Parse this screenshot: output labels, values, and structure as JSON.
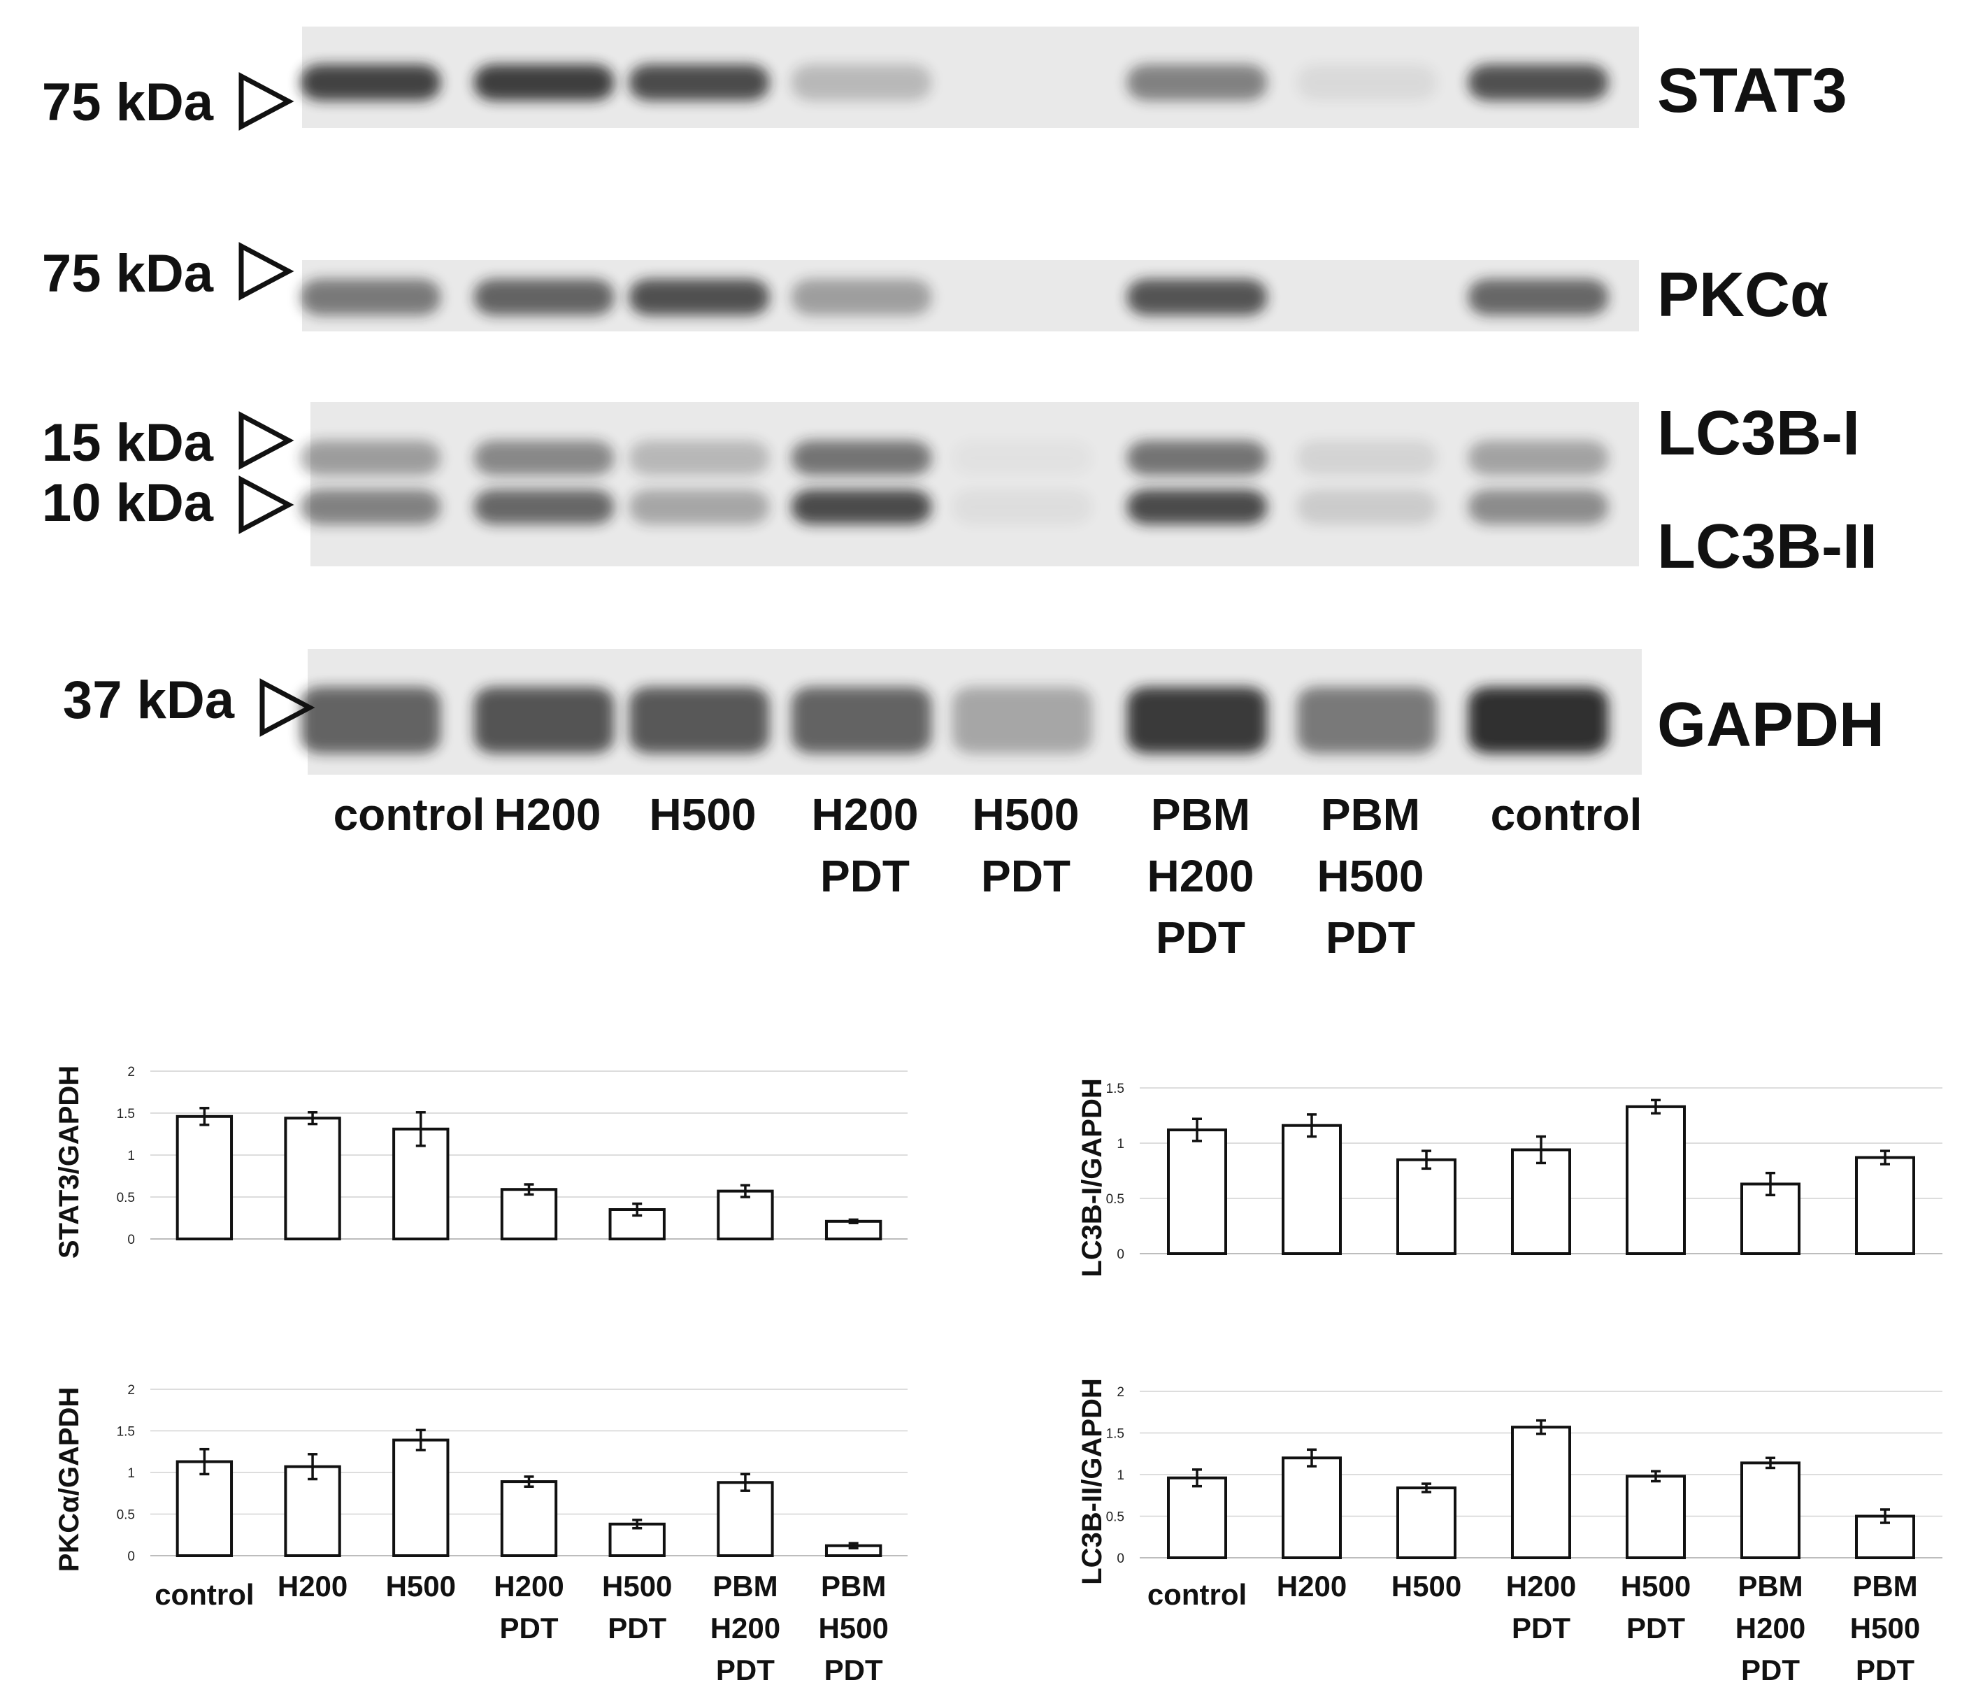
{
  "colors": {
    "band": "#1e1e1e",
    "membrane": "#e9e9e9",
    "bar_fill": "#ffffff",
    "bar_stroke": "#111111",
    "grid": "#d2d2d2"
  },
  "blot": {
    "lanes": [
      "control",
      "H200",
      "H500",
      "H200\nPDT",
      "H500\nPDT",
      "PBM\nH200\nPDT",
      "PBM\nH500\nPDT",
      "control"
    ],
    "panels": [
      {
        "markers": [
          "75 kDa"
        ],
        "proteins": [
          "STAT3"
        ],
        "band_intensity": [
          0.9,
          0.92,
          0.85,
          0.25,
          0.0,
          0.55,
          0.08,
          0.82
        ]
      },
      {
        "markers": [
          "75 kDa"
        ],
        "proteins": [
          "PKCα"
        ],
        "band_intensity": [
          0.6,
          0.72,
          0.82,
          0.4,
          0.0,
          0.8,
          0.0,
          0.7
        ]
      },
      {
        "markers": [
          "15 kDa",
          "10 kDa"
        ],
        "proteins": [
          "LC3B-I",
          "LC3B-II"
        ],
        "band_intensity": [
          0.55,
          0.7,
          0.35,
          0.85,
          0.05,
          0.85,
          0.15,
          0.5
        ]
      },
      {
        "markers": [
          "37 kDa"
        ],
        "proteins": [
          "GAPDH"
        ],
        "band_intensity": [
          0.72,
          0.8,
          0.78,
          0.72,
          0.35,
          0.95,
          0.6,
          1.0
        ]
      }
    ]
  },
  "chart_data": [
    {
      "type": "bar",
      "ylabel": "STAT3/GAPDH",
      "categories": [
        "control",
        "H200",
        "H500",
        "H200\nPDT",
        "H500\nPDT",
        "PBM\nH200\nPDT",
        "PBM\nH500\nPDT"
      ],
      "values": [
        1.46,
        1.44,
        1.31,
        0.59,
        0.35,
        0.57,
        0.21
      ],
      "errors": [
        0.1,
        0.07,
        0.2,
        0.06,
        0.07,
        0.07,
        0.02
      ],
      "yticks": [
        "0",
        "0.5",
        "1",
        "1.5",
        "2"
      ],
      "ylim": [
        0,
        2
      ],
      "grid": true
    },
    {
      "type": "bar",
      "ylabel": "PKCα/GAPDH",
      "categories": [
        "control",
        "H200",
        "H500",
        "H200\nPDT",
        "H500\nPDT",
        "PBM\nH200\nPDT",
        "PBM\nH500\nPDT"
      ],
      "values": [
        1.13,
        1.07,
        1.39,
        0.89,
        0.38,
        0.88,
        0.12
      ],
      "errors": [
        0.15,
        0.15,
        0.12,
        0.06,
        0.05,
        0.1,
        0.03
      ],
      "yticks": [
        "0",
        "0.5",
        "1",
        "1.5",
        "2"
      ],
      "ylim": [
        0,
        2
      ],
      "grid": true
    },
    {
      "type": "bar",
      "ylabel": "LC3B-I/GAPDH",
      "categories": [
        "control",
        "H200",
        "H500",
        "H200\nPDT",
        "H500\nPDT",
        "PBM\nH200\nPDT",
        "PBM\nH500\nPDT"
      ],
      "values": [
        1.12,
        1.16,
        0.85,
        0.94,
        1.33,
        0.63,
        0.87
      ],
      "errors": [
        0.1,
        0.1,
        0.08,
        0.12,
        0.06,
        0.1,
        0.06
      ],
      "yticks": [
        "0",
        "0.5",
        "1",
        "1.5"
      ],
      "ylim": [
        0,
        1.5
      ],
      "grid": true
    },
    {
      "type": "bar",
      "ylabel": "LC3B-II/GAPDH",
      "categories": [
        "control",
        "H200",
        "H500",
        "H200\nPDT",
        "H500\nPDT",
        "PBM\nH200\nPDT",
        "PBM\nH500\nPDT"
      ],
      "values": [
        0.96,
        1.2,
        0.84,
        1.57,
        0.98,
        1.14,
        0.5
      ],
      "errors": [
        0.1,
        0.1,
        0.05,
        0.08,
        0.06,
        0.06,
        0.08
      ],
      "yticks": [
        "0",
        "0.5",
        "1",
        "1.5",
        "2"
      ],
      "ylim": [
        0,
        2
      ],
      "grid": true
    }
  ]
}
